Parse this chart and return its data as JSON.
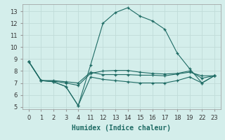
{
  "xlabel": "Humidex (Indice chaleur)",
  "bg_color": "#d4eeeb",
  "line_color": "#1e6b64",
  "grid_color": "#c0dcd8",
  "x_labels": [
    "0",
    "1",
    "2",
    "3",
    "4",
    "11",
    "12",
    "13",
    "14",
    "15",
    "16",
    "17",
    "18",
    "19",
    "22",
    "23"
  ],
  "ylim": [
    4.8,
    13.6
  ],
  "yticks": [
    5,
    6,
    7,
    8,
    9,
    10,
    11,
    12,
    13
  ],
  "series": {
    "max": [
      8.8,
      7.2,
      7.1,
      6.7,
      5.1,
      8.5,
      12.0,
      12.9,
      13.3,
      12.6,
      12.2,
      11.5,
      9.5,
      8.2,
      7.0,
      7.6
    ],
    "avg": [
      8.8,
      7.2,
      7.15,
      7.0,
      6.8,
      7.8,
      8.0,
      8.05,
      8.05,
      7.9,
      7.8,
      7.75,
      7.8,
      8.0,
      7.4,
      7.6
    ],
    "mid": [
      8.8,
      7.2,
      7.2,
      7.1,
      7.0,
      7.9,
      7.7,
      7.7,
      7.7,
      7.65,
      7.65,
      7.6,
      7.75,
      7.9,
      7.6,
      7.6
    ],
    "min": [
      8.8,
      7.2,
      7.1,
      6.7,
      5.1,
      7.5,
      7.3,
      7.2,
      7.1,
      7.0,
      7.0,
      7.0,
      7.2,
      7.5,
      7.0,
      7.6
    ]
  }
}
